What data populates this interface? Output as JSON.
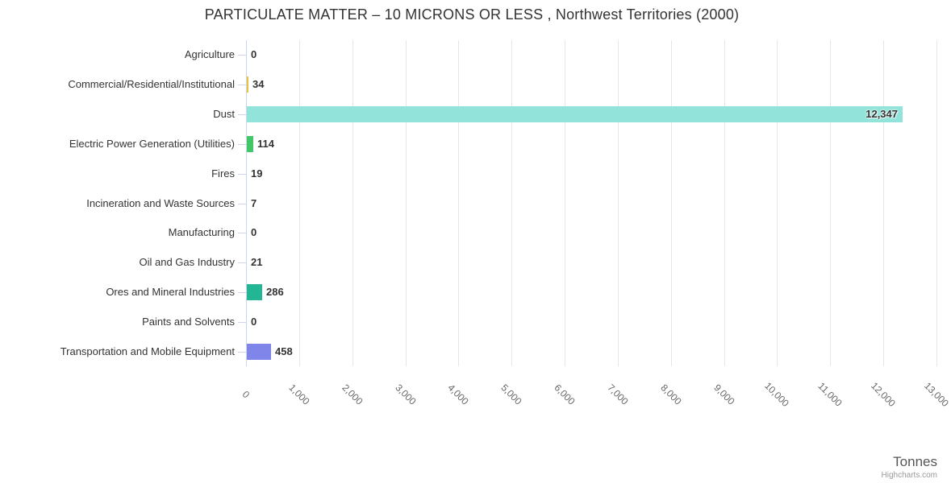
{
  "chart_data": {
    "type": "bar",
    "orientation": "horizontal",
    "title": "PARTICULATE MATTER – 10 MICRONS OR LESS , Northwest Territories (2000)",
    "categories": [
      "Agriculture",
      "Commercial/Residential/Institutional",
      "Dust",
      "Electric Power Generation (Utilities)",
      "Fires",
      "Incineration and Waste Sources",
      "Manufacturing",
      "Oil and Gas Industry",
      "Ores and Mineral Industries",
      "Paints and Solvents",
      "Transportation and Mobile Equipment"
    ],
    "values": [
      0,
      34,
      12347,
      114,
      19,
      7,
      0,
      21,
      286,
      0,
      458
    ],
    "data_labels": [
      "0",
      "34",
      "12,347",
      "114",
      "19",
      "7",
      "0",
      "21",
      "286",
      "0",
      "458"
    ],
    "bar_colors": [
      null,
      "#e9c33c",
      "#92e4db",
      "#41c768",
      null,
      null,
      null,
      null,
      "#22b694",
      null,
      "#8085e9"
    ],
    "xlabel": "Tonnes",
    "ylabel": "",
    "xlim": [
      0,
      13000
    ],
    "x_tick_labels": [
      "0",
      "1,000",
      "2,000",
      "3,000",
      "4,000",
      "5,000",
      "6,000",
      "7,000",
      "8,000",
      "9,000",
      "10,000",
      "11,000",
      "12,000",
      "13,000"
    ],
    "grid": true,
    "legend": false
  },
  "credit": {
    "label": "Highcharts.com"
  },
  "style": {
    "grid_color": "#e6e6e6",
    "axis_line_color": "#ccd6eb",
    "label_color": "#333333",
    "tick_label_color": "#666666"
  }
}
